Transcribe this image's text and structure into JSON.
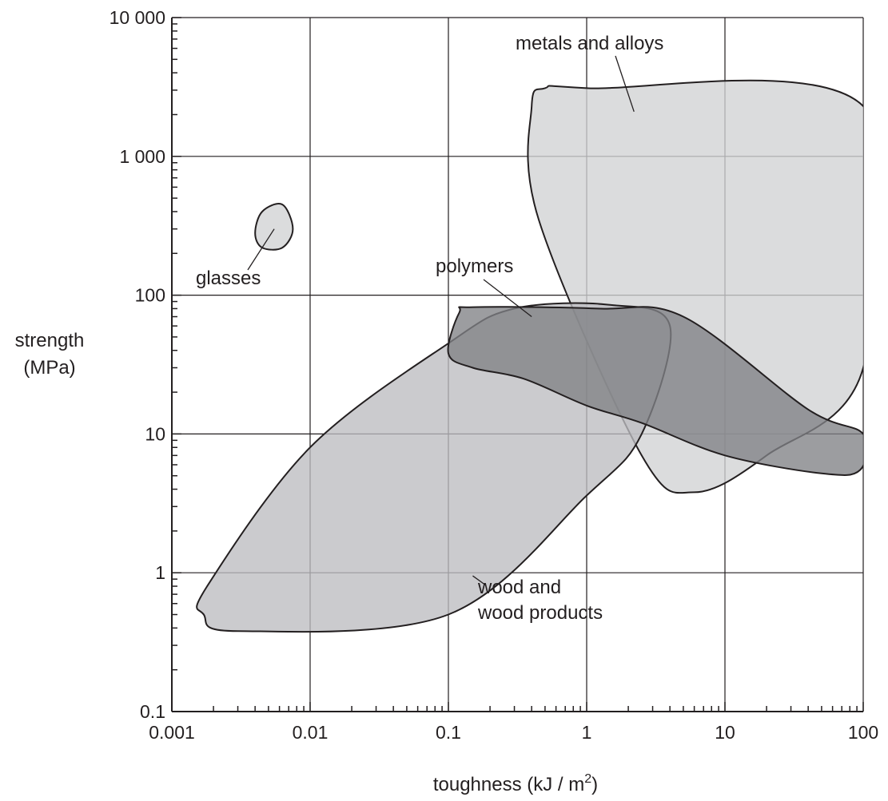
{
  "chart_data": {
    "type": "scatter",
    "scale": {
      "x": "log",
      "y": "log"
    },
    "xlim": [
      0.001,
      100
    ],
    "ylim": [
      0.1,
      10000
    ],
    "grid": true,
    "xlabel": "toughness (kJ / m2)",
    "xlabel_parts": {
      "main": "toughness",
      "unit_prefix": "(kJ / m",
      "unit_exponent": "2",
      "unit_suffix": ")"
    },
    "ylabel_lines": [
      "strength",
      "(MPa)"
    ],
    "x_ticks": [
      {
        "value": 0.001,
        "label": "0.001"
      },
      {
        "value": 0.01,
        "label": "0.01"
      },
      {
        "value": 0.1,
        "label": "0.1"
      },
      {
        "value": 1,
        "label": "1"
      },
      {
        "value": 10,
        "label": "10"
      },
      {
        "value": 100,
        "label": "100"
      }
    ],
    "y_ticks": [
      {
        "value": 0.1,
        "label": "0.1"
      },
      {
        "value": 1,
        "label": "1"
      },
      {
        "value": 10,
        "label": "10"
      },
      {
        "value": 100,
        "label": "100"
      },
      {
        "value": 1000,
        "label": "1 000"
      },
      {
        "value": 10000,
        "label": "10 000"
      }
    ],
    "series": [
      {
        "name": "metals and alloys",
        "label_lines": [
          "metals and alloys"
        ],
        "fill": "#d1d2d4",
        "outline": [
          [
            0.5,
            3100
          ],
          [
            0.4,
            2300
          ],
          [
            0.45,
            350
          ],
          [
            2.5,
            7
          ],
          [
            6,
            3.8
          ],
          [
            20,
            7
          ],
          [
            100,
            30
          ],
          [
            100,
            2300
          ],
          [
            1,
            3100
          ]
        ],
        "leader_to": [
          2.2,
          2100
        ]
      },
      {
        "name": "wood and wood products",
        "label_lines": [
          "wood and",
          "wood products"
        ],
        "fill": "#bcbdc0",
        "outline": [
          [
            0.1,
            45
          ],
          [
            0.01,
            8
          ],
          [
            0.0018,
            0.8
          ],
          [
            0.0017,
            0.5
          ],
          [
            0.003,
            0.38
          ],
          [
            0.1,
            0.5
          ],
          [
            1,
            3.6
          ],
          [
            2.5,
            10
          ],
          [
            4,
            60
          ],
          [
            1.5,
            85
          ],
          [
            0.3,
            80
          ]
        ],
        "leader_to": [
          0.15,
          0.95
        ]
      },
      {
        "name": "polymers",
        "label_lines": [
          "polymers"
        ],
        "fill": "#808285",
        "outline": [
          [
            0.12,
            75
          ],
          [
            0.15,
            82
          ],
          [
            1.2,
            80
          ],
          [
            5,
            70
          ],
          [
            40,
            15
          ],
          [
            100,
            10
          ],
          [
            95,
            5.5
          ],
          [
            50,
            5.2
          ],
          [
            10,
            7
          ],
          [
            2.5,
            12
          ],
          [
            1,
            16
          ],
          [
            0.35,
            25
          ],
          [
            0.15,
            30
          ],
          [
            0.1,
            38
          ]
        ],
        "leader_to": [
          0.4,
          70
        ]
      },
      {
        "name": "glasses",
        "label_lines": [
          "glasses"
        ],
        "fill": "#d1d2d4",
        "outline": [
          [
            0.0045,
            400
          ],
          [
            0.0063,
            450
          ],
          [
            0.0075,
            300
          ],
          [
            0.0063,
            220
          ],
          [
            0.0045,
            220
          ],
          [
            0.004,
            280
          ]
        ],
        "leader_to": [
          0.0055,
          300
        ]
      }
    ]
  }
}
